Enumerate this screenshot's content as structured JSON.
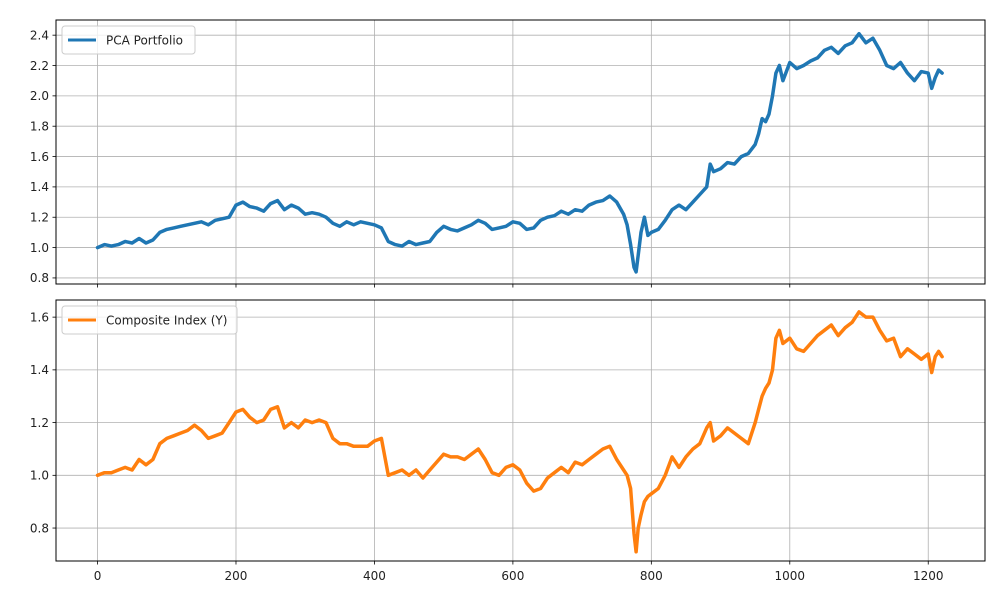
{
  "chart_data": [
    {
      "type": "line",
      "title": "",
      "xlabel": "",
      "ylabel": "",
      "xlim": [
        -60,
        1282
      ],
      "ylim": [
        0.76,
        2.5
      ],
      "xticks": [
        0,
        200,
        400,
        600,
        800,
        1000,
        1200
      ],
      "xtick_labels_visible": false,
      "yticks": [
        0.8,
        1.0,
        1.2,
        1.4,
        1.6,
        1.8,
        2.0,
        2.2,
        2.4
      ],
      "ytick_labels": [
        "0.8",
        "1.0",
        "1.2",
        "1.4",
        "1.6",
        "1.8",
        "2.0",
        "2.2",
        "2.4"
      ],
      "grid": true,
      "legend_position": "top-left",
      "series": [
        {
          "name": "PCA Portfolio",
          "color": "#1f77b4",
          "x": [
            0,
            10,
            20,
            30,
            40,
            50,
            60,
            70,
            80,
            90,
            100,
            110,
            120,
            130,
            140,
            150,
            160,
            170,
            180,
            190,
            200,
            210,
            220,
            230,
            240,
            250,
            260,
            270,
            280,
            290,
            300,
            310,
            320,
            330,
            340,
            350,
            360,
            370,
            380,
            390,
            400,
            410,
            420,
            430,
            440,
            450,
            460,
            470,
            480,
            490,
            500,
            510,
            520,
            530,
            540,
            550,
            560,
            570,
            580,
            590,
            600,
            610,
            620,
            630,
            640,
            650,
            660,
            670,
            680,
            690,
            700,
            710,
            720,
            730,
            740,
            750,
            760,
            765,
            770,
            775,
            778,
            781,
            785,
            790,
            795,
            800,
            810,
            820,
            830,
            840,
            850,
            860,
            870,
            880,
            885,
            890,
            900,
            910,
            920,
            930,
            940,
            950,
            955,
            960,
            965,
            970,
            975,
            980,
            985,
            990,
            1000,
            1010,
            1020,
            1030,
            1040,
            1050,
            1060,
            1070,
            1080,
            1090,
            1100,
            1110,
            1120,
            1130,
            1140,
            1150,
            1160,
            1170,
            1180,
            1190,
            1200,
            1205,
            1210,
            1215,
            1220
          ],
          "values": [
            1.0,
            1.02,
            1.01,
            1.02,
            1.04,
            1.03,
            1.06,
            1.03,
            1.05,
            1.1,
            1.12,
            1.13,
            1.14,
            1.15,
            1.16,
            1.17,
            1.15,
            1.18,
            1.19,
            1.2,
            1.28,
            1.3,
            1.27,
            1.26,
            1.24,
            1.29,
            1.31,
            1.25,
            1.28,
            1.26,
            1.22,
            1.23,
            1.22,
            1.2,
            1.16,
            1.14,
            1.17,
            1.15,
            1.17,
            1.16,
            1.15,
            1.13,
            1.04,
            1.02,
            1.01,
            1.04,
            1.02,
            1.03,
            1.04,
            1.1,
            1.14,
            1.12,
            1.11,
            1.13,
            1.15,
            1.18,
            1.16,
            1.12,
            1.13,
            1.14,
            1.17,
            1.16,
            1.12,
            1.13,
            1.18,
            1.2,
            1.21,
            1.24,
            1.22,
            1.25,
            1.24,
            1.28,
            1.3,
            1.31,
            1.34,
            1.3,
            1.22,
            1.15,
            1.02,
            0.87,
            0.84,
            0.95,
            1.1,
            1.2,
            1.08,
            1.1,
            1.12,
            1.18,
            1.25,
            1.28,
            1.25,
            1.3,
            1.35,
            1.4,
            1.55,
            1.5,
            1.52,
            1.56,
            1.55,
            1.6,
            1.62,
            1.68,
            1.75,
            1.85,
            1.83,
            1.88,
            2.0,
            2.15,
            2.2,
            2.1,
            2.22,
            2.18,
            2.2,
            2.23,
            2.25,
            2.3,
            2.32,
            2.28,
            2.33,
            2.35,
            2.41,
            2.35,
            2.38,
            2.3,
            2.2,
            2.18,
            2.22,
            2.15,
            2.1,
            2.16,
            2.15,
            2.05,
            2.12,
            2.17,
            2.15
          ]
        }
      ]
    },
    {
      "type": "line",
      "title": "",
      "xlabel": "",
      "ylabel": "",
      "xlim": [
        -60,
        1282
      ],
      "ylim": [
        0.675,
        1.665
      ],
      "xticks": [
        0,
        200,
        400,
        600,
        800,
        1000,
        1200
      ],
      "xtick_labels": [
        "0",
        "200",
        "400",
        "600",
        "800",
        "1000",
        "1200"
      ],
      "yticks": [
        0.8,
        1.0,
        1.2,
        1.4,
        1.6
      ],
      "ytick_labels": [
        "0.8",
        "1.0",
        "1.2",
        "1.4",
        "1.6"
      ],
      "grid": true,
      "legend_position": "top-left",
      "series": [
        {
          "name": "Composite Index (Y)",
          "color": "#ff7f0e",
          "x": [
            0,
            10,
            20,
            30,
            40,
            50,
            60,
            70,
            80,
            90,
            100,
            110,
            120,
            130,
            140,
            150,
            160,
            170,
            180,
            190,
            200,
            210,
            220,
            230,
            240,
            250,
            260,
            270,
            280,
            290,
            300,
            310,
            320,
            330,
            340,
            350,
            360,
            370,
            380,
            390,
            400,
            410,
            420,
            430,
            440,
            450,
            460,
            470,
            480,
            490,
            500,
            510,
            520,
            530,
            540,
            550,
            560,
            570,
            580,
            590,
            600,
            610,
            620,
            630,
            640,
            650,
            660,
            670,
            680,
            690,
            700,
            710,
            720,
            730,
            740,
            750,
            760,
            765,
            770,
            775,
            778,
            781,
            785,
            790,
            795,
            800,
            810,
            820,
            830,
            840,
            850,
            860,
            870,
            880,
            885,
            890,
            900,
            910,
            920,
            930,
            940,
            950,
            955,
            960,
            965,
            970,
            975,
            980,
            985,
            990,
            1000,
            1010,
            1020,
            1030,
            1040,
            1050,
            1060,
            1070,
            1080,
            1090,
            1100,
            1110,
            1120,
            1130,
            1140,
            1150,
            1160,
            1170,
            1180,
            1190,
            1200,
            1205,
            1210,
            1215,
            1220
          ],
          "values": [
            1.0,
            1.01,
            1.01,
            1.02,
            1.03,
            1.02,
            1.06,
            1.04,
            1.06,
            1.12,
            1.14,
            1.15,
            1.16,
            1.17,
            1.19,
            1.17,
            1.14,
            1.15,
            1.16,
            1.2,
            1.24,
            1.25,
            1.22,
            1.2,
            1.21,
            1.25,
            1.26,
            1.18,
            1.2,
            1.18,
            1.21,
            1.2,
            1.21,
            1.2,
            1.14,
            1.12,
            1.12,
            1.11,
            1.11,
            1.11,
            1.13,
            1.14,
            1.0,
            1.01,
            1.02,
            1.0,
            1.02,
            0.99,
            1.02,
            1.05,
            1.08,
            1.07,
            1.07,
            1.06,
            1.08,
            1.1,
            1.06,
            1.01,
            1.0,
            1.03,
            1.04,
            1.02,
            0.97,
            0.94,
            0.95,
            0.99,
            1.01,
            1.03,
            1.01,
            1.05,
            1.04,
            1.06,
            1.08,
            1.1,
            1.11,
            1.06,
            1.02,
            1.0,
            0.95,
            0.78,
            0.71,
            0.8,
            0.85,
            0.9,
            0.92,
            0.93,
            0.95,
            1.0,
            1.07,
            1.03,
            1.07,
            1.1,
            1.12,
            1.18,
            1.2,
            1.13,
            1.15,
            1.18,
            1.16,
            1.14,
            1.12,
            1.2,
            1.25,
            1.3,
            1.33,
            1.35,
            1.4,
            1.52,
            1.55,
            1.5,
            1.52,
            1.48,
            1.47,
            1.5,
            1.53,
            1.55,
            1.57,
            1.53,
            1.56,
            1.58,
            1.62,
            1.6,
            1.6,
            1.55,
            1.51,
            1.52,
            1.45,
            1.48,
            1.46,
            1.44,
            1.46,
            1.39,
            1.45,
            1.47,
            1.45
          ]
        }
      ]
    }
  ]
}
